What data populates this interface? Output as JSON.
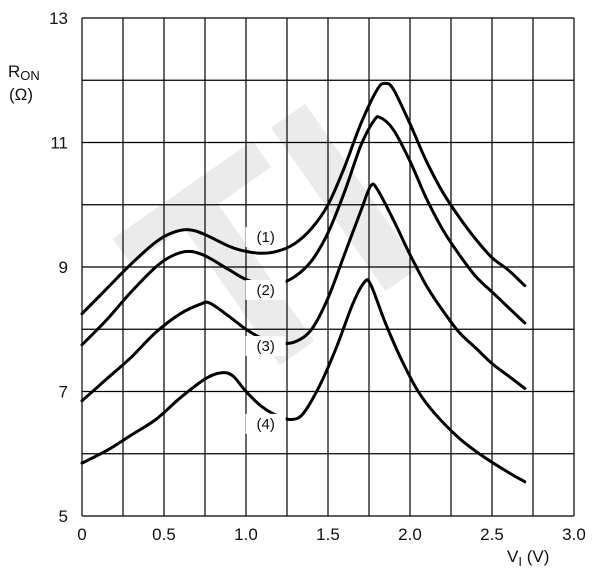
{
  "chart_data": {
    "type": "line",
    "ylabel_main": "R",
    "ylabel_sub": "ON",
    "ylabel_unit": "(Ω)",
    "xlabel_main": "V",
    "xlabel_sub": "I",
    "xlabel_unit": " (V)",
    "xlim": [
      0,
      3.0
    ],
    "ylim": [
      5,
      13
    ],
    "x_ticks": [
      0,
      0.5,
      1.0,
      1.5,
      2.0,
      2.5,
      3.0
    ],
    "x_tick_labels": [
      "0",
      "0.5",
      "1.0",
      "1.5",
      "2.0",
      "2.5",
      "3.0"
    ],
    "y_ticks": [
      5,
      7,
      9,
      11,
      13
    ],
    "y_tick_labels": [
      "5",
      "7",
      "9",
      "11",
      "13"
    ],
    "grid": true,
    "watermark": "TI",
    "series": [
      {
        "name": "(1)",
        "label_at": [
          1.12,
          9.4
        ],
        "points": [
          [
            0,
            8.25
          ],
          [
            0.15,
            8.65
          ],
          [
            0.3,
            9.05
          ],
          [
            0.45,
            9.4
          ],
          [
            0.55,
            9.55
          ],
          [
            0.65,
            9.6
          ],
          [
            0.75,
            9.52
          ],
          [
            0.9,
            9.33
          ],
          [
            1.0,
            9.25
          ],
          [
            1.1,
            9.22
          ],
          [
            1.2,
            9.26
          ],
          [
            1.3,
            9.38
          ],
          [
            1.4,
            9.62
          ],
          [
            1.5,
            10.0
          ],
          [
            1.6,
            10.6
          ],
          [
            1.7,
            11.3
          ],
          [
            1.8,
            11.85
          ],
          [
            1.85,
            11.95
          ],
          [
            1.9,
            11.85
          ],
          [
            2.0,
            11.3
          ],
          [
            2.1,
            10.7
          ],
          [
            2.2,
            10.2
          ],
          [
            2.3,
            9.8
          ],
          [
            2.4,
            9.45
          ],
          [
            2.5,
            9.15
          ],
          [
            2.6,
            8.95
          ],
          [
            2.7,
            8.7
          ]
        ]
      },
      {
        "name": "(2)",
        "label_at": [
          1.12,
          8.55
        ],
        "points": [
          [
            0,
            7.75
          ],
          [
            0.15,
            8.15
          ],
          [
            0.3,
            8.6
          ],
          [
            0.45,
            9.0
          ],
          [
            0.55,
            9.18
          ],
          [
            0.65,
            9.25
          ],
          [
            0.75,
            9.18
          ],
          [
            0.9,
            8.95
          ],
          [
            1.0,
            8.8
          ],
          [
            1.1,
            8.72
          ],
          [
            1.2,
            8.73
          ],
          [
            1.3,
            8.85
          ],
          [
            1.4,
            9.1
          ],
          [
            1.5,
            9.55
          ],
          [
            1.6,
            10.2
          ],
          [
            1.7,
            10.95
          ],
          [
            1.78,
            11.35
          ],
          [
            1.82,
            11.4
          ],
          [
            1.9,
            11.2
          ],
          [
            2.0,
            10.7
          ],
          [
            2.1,
            10.1
          ],
          [
            2.2,
            9.6
          ],
          [
            2.3,
            9.2
          ],
          [
            2.4,
            8.85
          ],
          [
            2.5,
            8.6
          ],
          [
            2.6,
            8.35
          ],
          [
            2.7,
            8.1
          ]
        ]
      },
      {
        "name": "(3)",
        "label_at": [
          1.12,
          7.65
        ],
        "points": [
          [
            0,
            6.85
          ],
          [
            0.15,
            7.2
          ],
          [
            0.3,
            7.55
          ],
          [
            0.45,
            7.95
          ],
          [
            0.6,
            8.25
          ],
          [
            0.72,
            8.4
          ],
          [
            0.78,
            8.42
          ],
          [
            0.9,
            8.2
          ],
          [
            1.0,
            8.0
          ],
          [
            1.1,
            7.85
          ],
          [
            1.2,
            7.78
          ],
          [
            1.3,
            7.8
          ],
          [
            1.4,
            8.0
          ],
          [
            1.5,
            8.5
          ],
          [
            1.6,
            9.2
          ],
          [
            1.7,
            9.9
          ],
          [
            1.76,
            10.3
          ],
          [
            1.8,
            10.25
          ],
          [
            1.9,
            9.75
          ],
          [
            2.0,
            9.2
          ],
          [
            2.1,
            8.7
          ],
          [
            2.2,
            8.3
          ],
          [
            2.3,
            7.95
          ],
          [
            2.4,
            7.7
          ],
          [
            2.5,
            7.45
          ],
          [
            2.6,
            7.25
          ],
          [
            2.7,
            7.05
          ]
        ]
      },
      {
        "name": "(4)",
        "label_at": [
          1.12,
          6.4
        ],
        "points": [
          [
            0,
            5.85
          ],
          [
            0.15,
            6.05
          ],
          [
            0.3,
            6.3
          ],
          [
            0.45,
            6.55
          ],
          [
            0.6,
            6.9
          ],
          [
            0.75,
            7.2
          ],
          [
            0.85,
            7.3
          ],
          [
            0.92,
            7.25
          ],
          [
            1.0,
            7.0
          ],
          [
            1.1,
            6.75
          ],
          [
            1.2,
            6.6
          ],
          [
            1.28,
            6.55
          ],
          [
            1.35,
            6.65
          ],
          [
            1.45,
            7.1
          ],
          [
            1.55,
            7.7
          ],
          [
            1.65,
            8.4
          ],
          [
            1.72,
            8.75
          ],
          [
            1.76,
            8.72
          ],
          [
            1.85,
            8.1
          ],
          [
            1.95,
            7.5
          ],
          [
            2.05,
            7.0
          ],
          [
            2.15,
            6.65
          ],
          [
            2.3,
            6.25
          ],
          [
            2.45,
            5.95
          ],
          [
            2.6,
            5.7
          ],
          [
            2.7,
            5.55
          ]
        ]
      }
    ]
  }
}
